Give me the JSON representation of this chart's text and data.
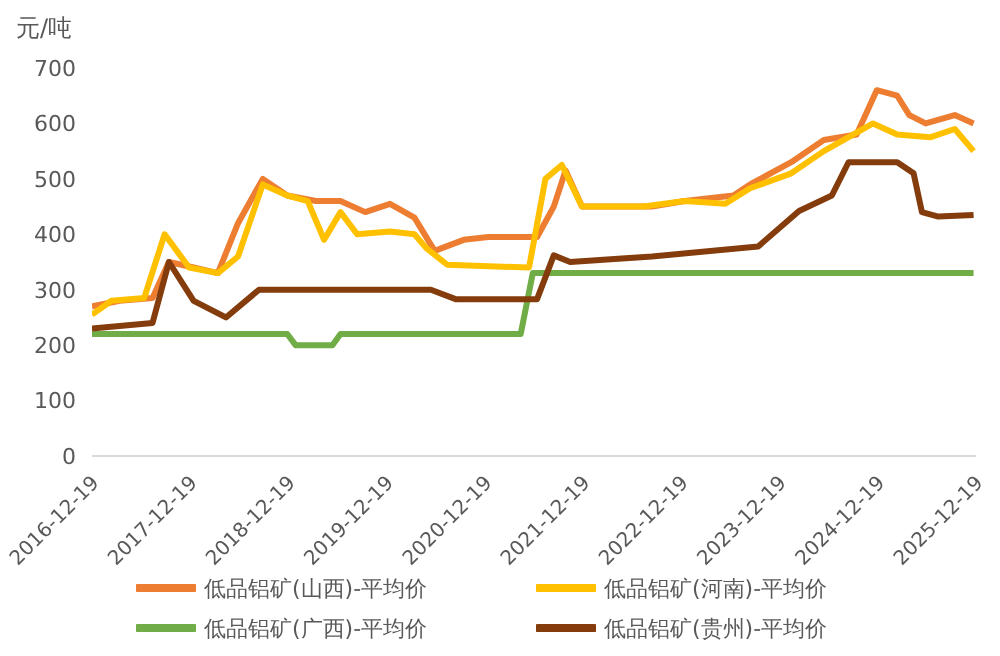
{
  "chart_data": {
    "type": "line",
    "ylabel": "元/吨",
    "ylim": [
      0,
      700
    ],
    "yticks": [
      0,
      100,
      200,
      300,
      400,
      500,
      600,
      700
    ],
    "xlim": [
      "2016-12-19",
      "2025-12-19"
    ],
    "xticks": [
      "2016-12-19",
      "2017-12-19",
      "2018-12-19",
      "2019-12-19",
      "2020-12-19",
      "2021-12-19",
      "2022-12-19",
      "2023-12-19",
      "2024-12-19",
      "2025-12-19"
    ],
    "grid": false,
    "legend": "bottom",
    "marker": "none",
    "line_style": "solid",
    "series": [
      {
        "name": "低品铝矿(山西)-平均价",
        "color": "#ed7d31",
        "x": [
          "2016-12-19",
          "2017-04-01",
          "2017-08-01",
          "2017-10-01",
          "2018-01-01",
          "2018-04-01",
          "2018-06-15",
          "2018-09-15",
          "2018-12-15",
          "2019-04-01",
          "2019-07-01",
          "2019-10-01",
          "2020-01-01",
          "2020-04-01",
          "2020-06-15",
          "2020-10-01",
          "2021-01-01",
          "2021-07-01",
          "2021-09-01",
          "2021-10-15",
          "2021-12-15",
          "2022-09-01",
          "2023-01-01",
          "2023-07-01",
          "2023-09-01",
          "2024-02-01",
          "2024-06-01",
          "2024-10-01",
          "2024-12-15",
          "2025-03-01",
          "2025-04-15",
          "2025-06-15",
          "2025-10-01",
          "2025-12-10"
        ],
        "values": [
          270,
          280,
          285,
          350,
          340,
          330,
          420,
          500,
          470,
          460,
          460,
          440,
          455,
          430,
          370,
          390,
          395,
          395,
          450,
          515,
          450,
          450,
          460,
          470,
          490,
          530,
          570,
          580,
          660,
          650,
          615,
          600,
          615,
          600
        ]
      },
      {
        "name": "低品铝矿(河南)-平均价",
        "color": "#ffc000",
        "x": [
          "2016-12-19",
          "2017-03-01",
          "2017-07-01",
          "2017-09-15",
          "2017-12-15",
          "2018-04-01",
          "2018-06-15",
          "2018-09-15",
          "2018-12-15",
          "2019-03-01",
          "2019-05-01",
          "2019-07-01",
          "2019-09-01",
          "2020-01-01",
          "2020-04-01",
          "2020-05-15",
          "2020-08-01",
          "2021-06-01",
          "2021-08-01",
          "2021-10-01",
          "2021-12-15",
          "2022-08-01",
          "2023-01-01",
          "2023-06-01",
          "2023-09-01",
          "2024-02-01",
          "2024-06-01",
          "2024-12-01",
          "2025-03-01",
          "2025-07-01",
          "2025-10-01",
          "2025-12-10"
        ],
        "values": [
          255,
          280,
          285,
          400,
          340,
          330,
          360,
          490,
          470,
          460,
          390,
          440,
          400,
          405,
          400,
          375,
          345,
          340,
          500,
          525,
          450,
          450,
          460,
          455,
          483,
          510,
          550,
          600,
          580,
          575,
          590,
          550
        ]
      },
      {
        "name": "低品铝矿(广西)-平均价",
        "color": "#70ad47",
        "x": [
          "2016-12-19",
          "2018-12-15",
          "2019-01-15",
          "2019-06-01",
          "2019-07-01",
          "2021-05-01",
          "2021-06-15",
          "2025-12-10"
        ],
        "values": [
          220,
          220,
          200,
          200,
          220,
          220,
          330,
          330
        ]
      },
      {
        "name": "低品铝矿(贵州)-平均价",
        "color": "#843c0c",
        "x": [
          "2016-12-19",
          "2017-08-01",
          "2017-10-01",
          "2018-01-01",
          "2018-05-01",
          "2018-09-01",
          "2020-06-01",
          "2020-09-01",
          "2021-07-01",
          "2021-09-01",
          "2021-11-01",
          "2022-09-01",
          "2023-10-01",
          "2024-03-01",
          "2024-07-01",
          "2024-09-01",
          "2025-03-01",
          "2025-05-01",
          "2025-06-01",
          "2025-08-01",
          "2025-12-10"
        ],
        "values": [
          230,
          240,
          350,
          280,
          250,
          300,
          300,
          283,
          283,
          362,
          350,
          360,
          378,
          442,
          470,
          530,
          530,
          510,
          440,
          432,
          435
        ]
      }
    ]
  }
}
